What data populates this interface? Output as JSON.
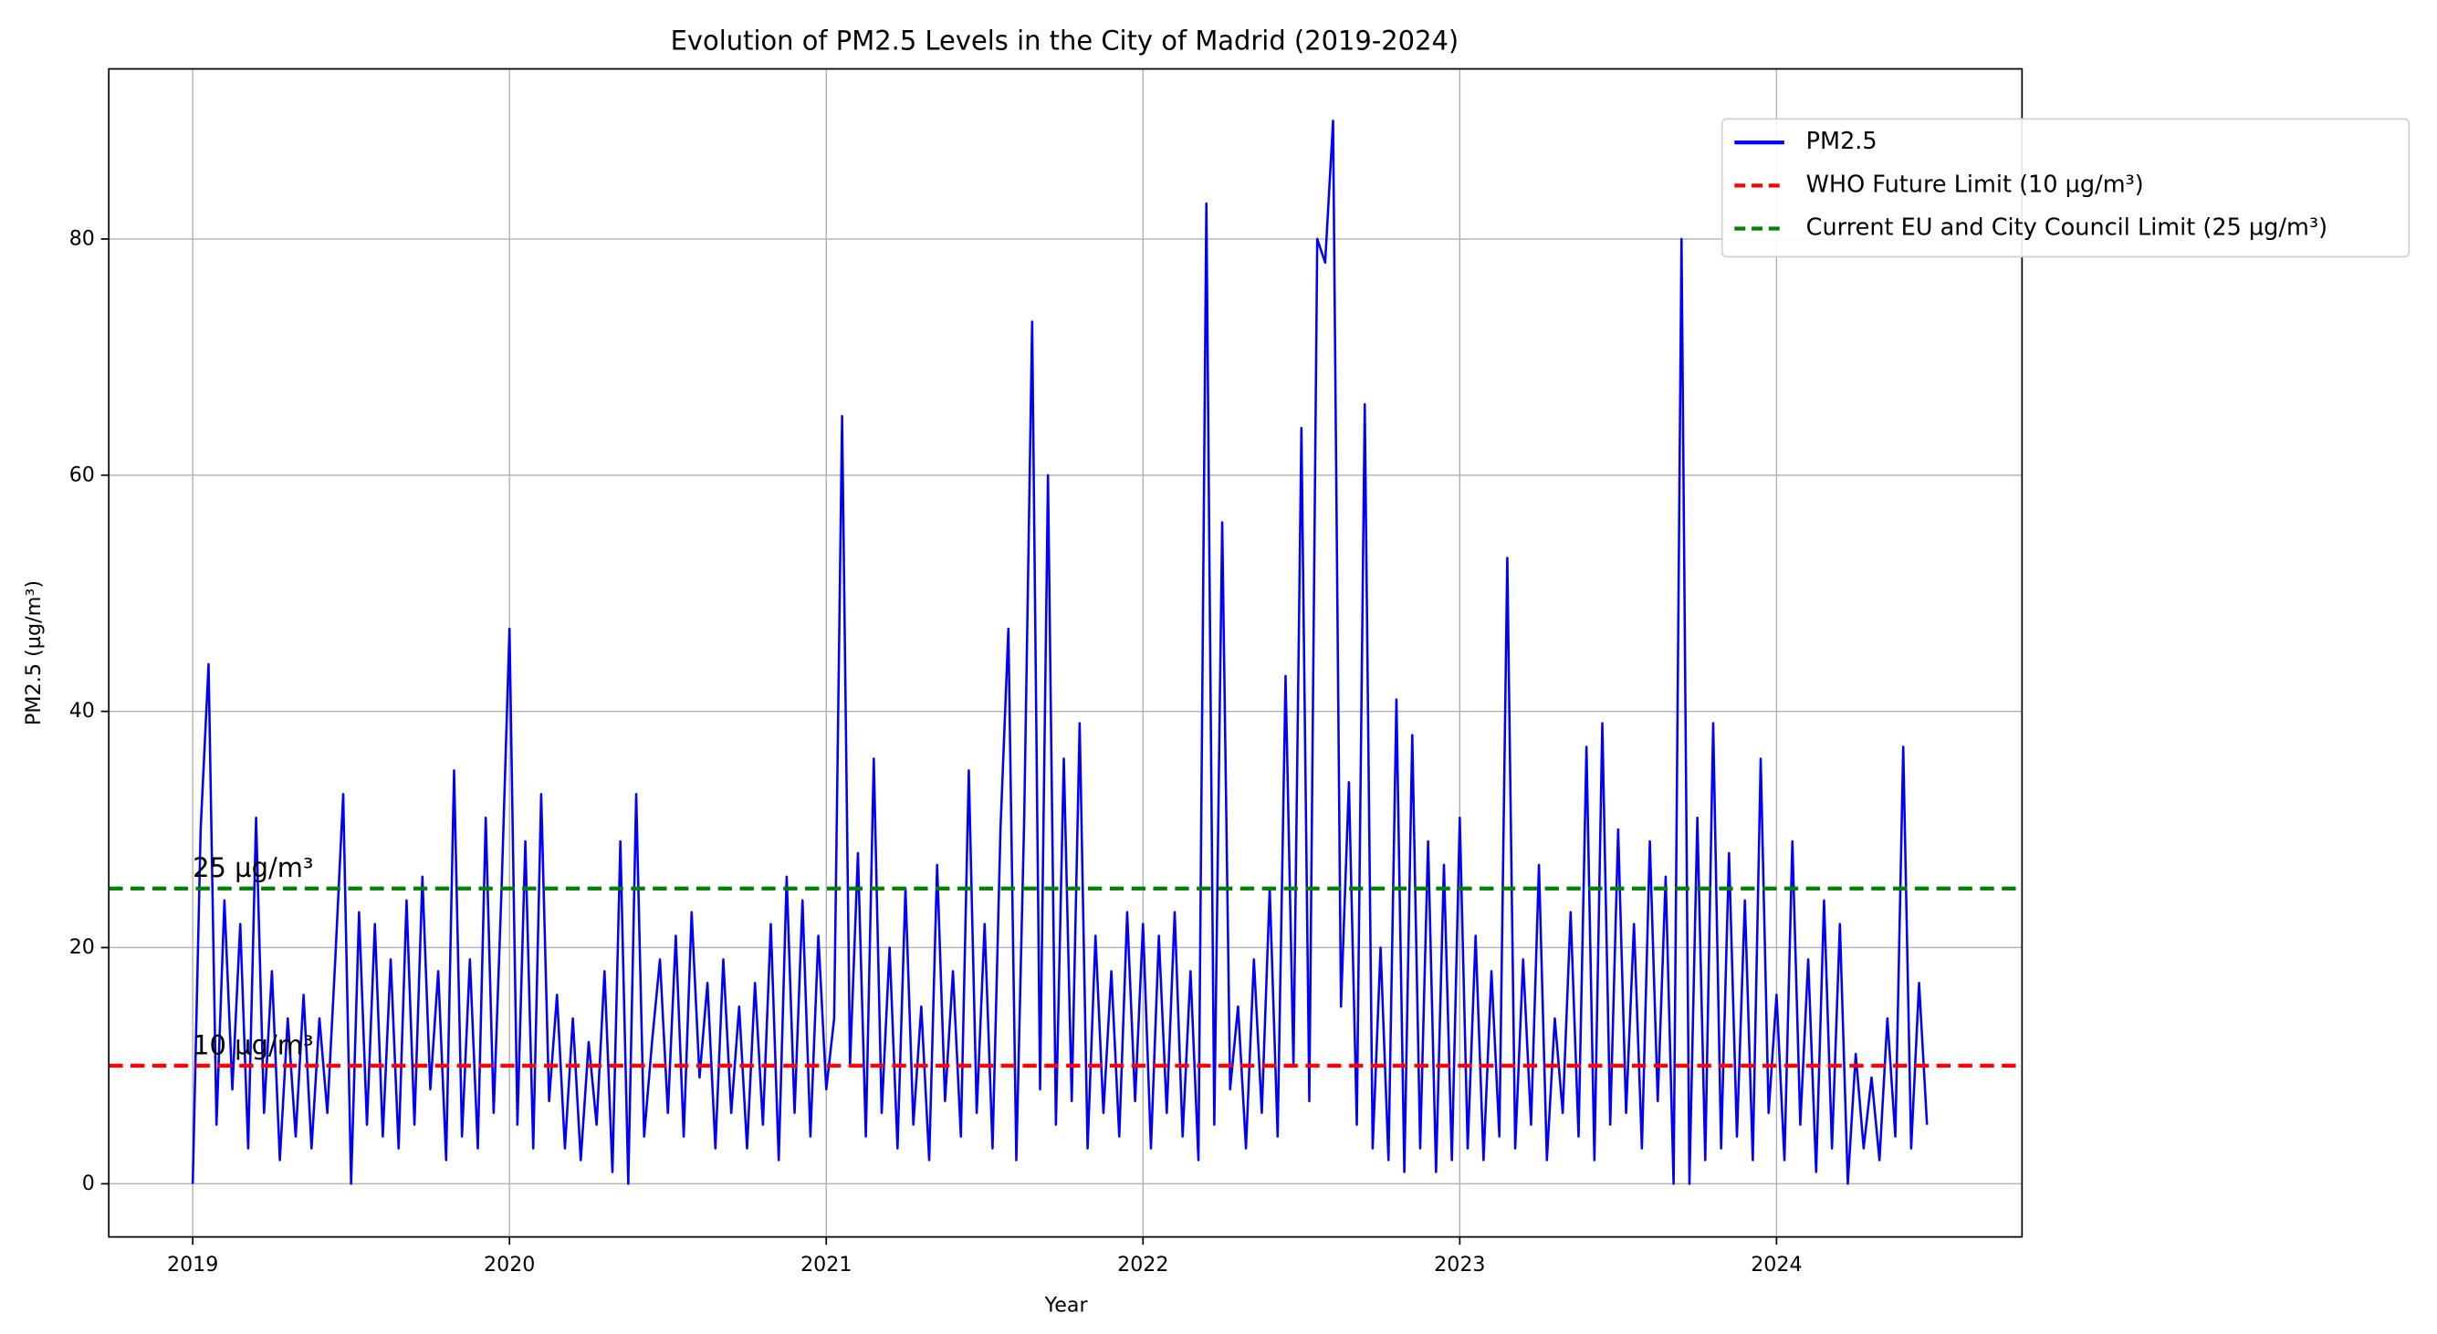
{
  "chart_data": {
    "type": "line",
    "title": "Evolution of PM2.5 Levels in the City of Madrid (2019-2024)",
    "xlabel": "Year",
    "ylabel": "PM2.5 (µg/m³)",
    "xlim": [
      2018.735,
      2024.775
    ],
    "ylim": [
      -4.5,
      94.4
    ],
    "xticks": [
      2019,
      2020,
      2021,
      2022,
      2023,
      2024
    ],
    "yticks": [
      0,
      20,
      40,
      60,
      80
    ],
    "grid": true,
    "legend": "upper right",
    "series": [
      {
        "name": "PM2.5",
        "color": "#0000ff",
        "x": [
          2019.0,
          2019.025,
          2019.05,
          2019.075,
          2019.1,
          2019.125,
          2019.15,
          2019.175,
          2019.2,
          2019.225,
          2019.25,
          2019.275,
          2019.3,
          2019.325,
          2019.35,
          2019.375,
          2019.4,
          2019.425,
          2019.45,
          2019.475,
          2019.5,
          2019.525,
          2019.55,
          2019.575,
          2019.6,
          2019.625,
          2019.65,
          2019.675,
          2019.7,
          2019.725,
          2019.75,
          2019.775,
          2019.8,
          2019.825,
          2019.85,
          2019.875,
          2019.9,
          2019.925,
          2019.95,
          2019.975,
          2020.0,
          2020.025,
          2020.05,
          2020.075,
          2020.1,
          2020.125,
          2020.15,
          2020.175,
          2020.2,
          2020.225,
          2020.25,
          2020.275,
          2020.3,
          2020.325,
          2020.35,
          2020.375,
          2020.4,
          2020.425,
          2020.45,
          2020.475,
          2020.5,
          2020.525,
          2020.55,
          2020.575,
          2020.6,
          2020.625,
          2020.65,
          2020.675,
          2020.7,
          2020.725,
          2020.75,
          2020.775,
          2020.8,
          2020.825,
          2020.85,
          2020.875,
          2020.9,
          2020.925,
          2020.95,
          2020.975,
          2021.0,
          2021.025,
          2021.05,
          2021.075,
          2021.1,
          2021.125,
          2021.15,
          2021.175,
          2021.2,
          2021.225,
          2021.25,
          2021.275,
          2021.3,
          2021.325,
          2021.35,
          2021.375,
          2021.4,
          2021.425,
          2021.45,
          2021.475,
          2021.5,
          2021.525,
          2021.55,
          2021.575,
          2021.6,
          2021.625,
          2021.65,
          2021.675,
          2021.7,
          2021.725,
          2021.75,
          2021.775,
          2021.8,
          2021.825,
          2021.85,
          2021.875,
          2021.9,
          2021.925,
          2021.95,
          2021.975,
          2022.0,
          2022.025,
          2022.05,
          2022.075,
          2022.1,
          2022.125,
          2022.15,
          2022.175,
          2022.2,
          2022.225,
          2022.25,
          2022.275,
          2022.3,
          2022.325,
          2022.35,
          2022.375,
          2022.4,
          2022.425,
          2022.45,
          2022.475,
          2022.5,
          2022.525,
          2022.55,
          2022.575,
          2022.6,
          2022.625,
          2022.65,
          2022.675,
          2022.7,
          2022.725,
          2022.75,
          2022.775,
          2022.8,
          2022.825,
          2022.85,
          2022.875,
          2022.9,
          2022.925,
          2022.95,
          2022.975,
          2023.0,
          2023.025,
          2023.05,
          2023.075,
          2023.1,
          2023.125,
          2023.15,
          2023.175,
          2023.2,
          2023.225,
          2023.25,
          2023.275,
          2023.3,
          2023.325,
          2023.35,
          2023.375,
          2023.4,
          2023.425,
          2023.45,
          2023.475,
          2023.5,
          2023.525,
          2023.55,
          2023.575,
          2023.6,
          2023.625,
          2023.65,
          2023.675,
          2023.7,
          2023.725,
          2023.75,
          2023.775,
          2023.8,
          2023.825,
          2023.85,
          2023.875,
          2023.9,
          2023.925,
          2023.95,
          2023.975,
          2024.0,
          2024.025,
          2024.05,
          2024.075,
          2024.1,
          2024.125,
          2024.15,
          2024.175,
          2024.2,
          2024.225,
          2024.25,
          2024.275,
          2024.3,
          2024.325,
          2024.35,
          2024.375,
          2024.4,
          2024.425,
          2024.45,
          2024.475
        ],
        "values": [
          0,
          30,
          44,
          5,
          24,
          8,
          22,
          3,
          31,
          6,
          18,
          2,
          14,
          4,
          16,
          3,
          14,
          6,
          19,
          33,
          0,
          23,
          5,
          22,
          4,
          19,
          3,
          24,
          5,
          26,
          8,
          18,
          2,
          35,
          4,
          19,
          3,
          31,
          6,
          25,
          47,
          5,
          29,
          3,
          33,
          7,
          16,
          3,
          14,
          2,
          12,
          5,
          18,
          1,
          29,
          0,
          33,
          4,
          12,
          19,
          6,
          21,
          4,
          23,
          9,
          17,
          3,
          19,
          6,
          15,
          3,
          17,
          5,
          22,
          2,
          26,
          6,
          24,
          4,
          21,
          8,
          14,
          65,
          10,
          28,
          4,
          36,
          6,
          20,
          3,
          25,
          5,
          15,
          2,
          27,
          7,
          18,
          4,
          35,
          6,
          22,
          3,
          30,
          47,
          2,
          31,
          73,
          8,
          60,
          5,
          36,
          7,
          39,
          3,
          21,
          6,
          18,
          4,
          23,
          7,
          22,
          3,
          21,
          6,
          23,
          4,
          18,
          2,
          83,
          5,
          56,
          8,
          15,
          3,
          19,
          6,
          25,
          4,
          43,
          10,
          64,
          7,
          80,
          78,
          90,
          15,
          34,
          5,
          66,
          3,
          20,
          2,
          41,
          1,
          38,
          3,
          29,
          1,
          27,
          2,
          31,
          3,
          21,
          2,
          18,
          4,
          53,
          3,
          19,
          5,
          27,
          2,
          14,
          6,
          23,
          4,
          37,
          2,
          39,
          5,
          30,
          6,
          22,
          3,
          29,
          7,
          26,
          0,
          80,
          0,
          31,
          2,
          39,
          3,
          28,
          4,
          24,
          2,
          36,
          6,
          16,
          2,
          29,
          5,
          19,
          1,
          24,
          3,
          22,
          0,
          11,
          3,
          9,
          2,
          14,
          4,
          37,
          3,
          17,
          5
        ]
      }
    ],
    "hlines": [
      {
        "name": "WHO Future Limit (10 µg/m³)",
        "value": 10,
        "color": "#ff0000",
        "label": "10 µg/m³"
      },
      {
        "name": "Current EU and City Council Limit (25 µg/m³)",
        "value": 25,
        "color": "#008000",
        "label": "25 µg/m³"
      }
    ]
  }
}
